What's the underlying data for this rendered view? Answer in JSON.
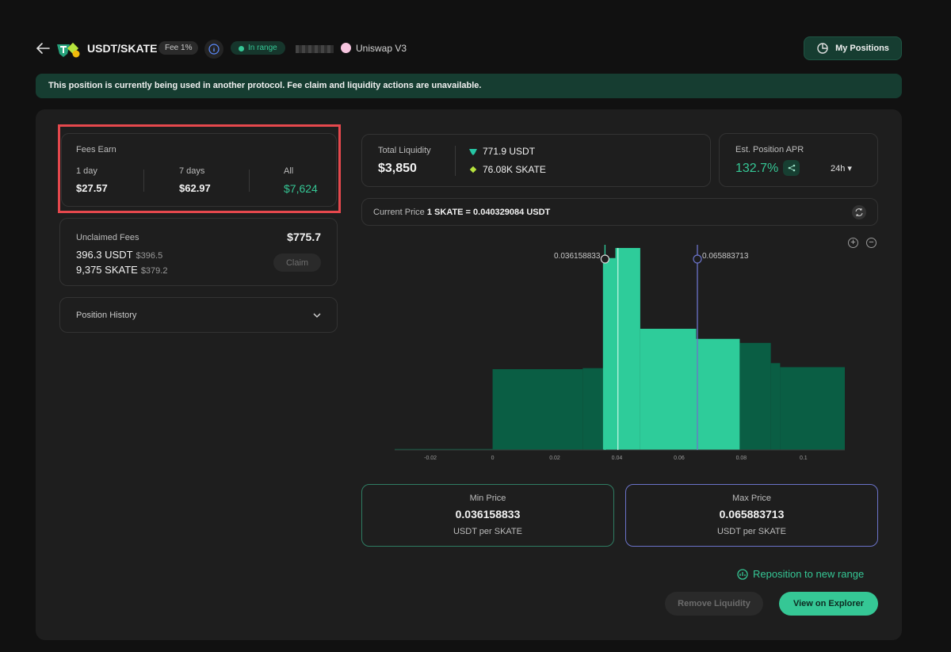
{
  "header": {
    "pair": "USDT/SKATE",
    "fee_badge": "Fee 1%",
    "status_badge": "In range",
    "protocol": "Uniswap V3",
    "my_positions": "My Positions"
  },
  "banner": {
    "text": "This position is currently being used in another protocol. Fee claim and liquidity actions are unavailable."
  },
  "fees_earn": {
    "title": "Fees Earn",
    "columns": [
      {
        "label": "1 day",
        "value": "$27.57"
      },
      {
        "label": "7 days",
        "value": "$62.97"
      },
      {
        "label": "All",
        "value": "$7,624"
      }
    ]
  },
  "unclaimed": {
    "title": "Unclaimed Fees",
    "total": "$775.7",
    "rows": [
      {
        "amount": "396.3 USDT",
        "usd": "$396.5"
      },
      {
        "amount": "9,375 SKATE",
        "usd": "$379.2"
      }
    ],
    "claim": "Claim"
  },
  "history": {
    "title": "Position History"
  },
  "liquidity": {
    "title": "Total Liquidity",
    "total": "$3,850",
    "tokens": [
      {
        "amount": "771.9 USDT",
        "icon": "usdt-icon"
      },
      {
        "amount": "76.08K SKATE",
        "icon": "skate-icon"
      }
    ]
  },
  "apr": {
    "title": "Est. Position APR",
    "value": "132.7%",
    "period": "24h"
  },
  "current_price": {
    "label": "Current Price",
    "value": "1 SKATE = 0.040329084 USDT"
  },
  "chart_data": {
    "type": "bar",
    "x_ticks": [
      "-0.02",
      "0",
      "0.02",
      "0.04",
      "0.06",
      "0.08",
      "0.1"
    ],
    "xlim": [
      -0.0315,
      0.1133
    ],
    "bins": [
      {
        "x0": -0.0315,
        "x1": 0.0,
        "liquidity": 0.5
      },
      {
        "x0": 0.0,
        "x1": 0.029,
        "liquidity": 40
      },
      {
        "x0": 0.029,
        "x1": 0.0355,
        "liquidity": 40.5
      },
      {
        "x0": 0.0355,
        "x1": 0.0395,
        "liquidity": 95
      },
      {
        "x0": 0.0395,
        "x1": 0.0475,
        "liquidity": 100
      },
      {
        "x0": 0.0475,
        "x1": 0.0655,
        "liquidity": 60
      },
      {
        "x0": 0.0655,
        "x1": 0.0795,
        "liquidity": 55
      },
      {
        "x0": 0.0795,
        "x1": 0.0895,
        "liquidity": 53
      },
      {
        "x0": 0.0895,
        "x1": 0.0925,
        "liquidity": 43
      },
      {
        "x0": 0.0925,
        "x1": 0.1133,
        "liquidity": 41
      }
    ],
    "current_price": 0.040329084,
    "min_price": 0.036158833,
    "max_price": 0.065883713,
    "min_label": "0.036158833",
    "max_label": "0.065883713",
    "colors": {
      "in_range": "#2ecc9a",
      "out_range": "#0a5e44",
      "min_line": "#2ecc9a",
      "max_line": "#6b73c9"
    }
  },
  "min_price": {
    "label": "Min Price",
    "value": "0.036158833",
    "unit": "USDT per SKATE"
  },
  "max_price": {
    "label": "Max Price",
    "value": "0.065883713",
    "unit": "USDT per SKATE"
  },
  "actions": {
    "reposition": "Reposition to new range",
    "remove": "Remove Liquidity",
    "explorer": "View on Explorer"
  }
}
